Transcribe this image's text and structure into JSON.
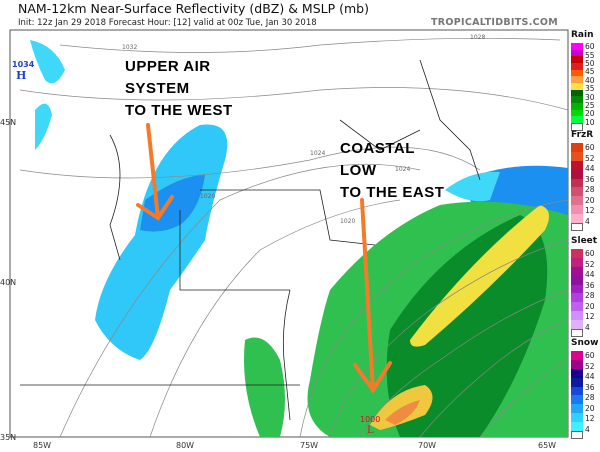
{
  "header": {
    "title": "NAM-12km Near-Surface Reflectivity (dBZ) & MSLP (mb)",
    "subtitle": "Init: 12z Jan 29 2018   Forecast Hour: [12]   valid at 00z Tue, Jan 30 2018",
    "brand": "TROPICALTIDBITS.COM"
  },
  "map": {
    "lat_labels": [
      "45N",
      "40N",
      "35N"
    ],
    "lon_labels": [
      "85W",
      "80W",
      "75W",
      "70W",
      "65W"
    ],
    "high": {
      "value": "1034",
      "symbol": "H",
      "color": "#1f3fd0"
    },
    "low": {
      "value": "1000",
      "symbol": "L",
      "color": "#d0102a"
    },
    "isobar_labels": [
      "1032",
      "1028",
      "1024",
      "1020",
      "1024",
      "1020"
    ],
    "annotations": [
      {
        "lines": [
          "UPPER AIR",
          "SYSTEM",
          "TO THE WEST"
        ]
      },
      {
        "lines": [
          "COASTAL",
          "LOW",
          "TO THE EAST"
        ]
      }
    ],
    "arrow_color": "#f47a2a"
  },
  "legend": [
    {
      "title": "Rain",
      "labels": [
        "60",
        "55",
        "50",
        "45",
        "40",
        "35",
        "30",
        "25",
        "20",
        "10"
      ],
      "colors": [
        "#ff00ff",
        "#c800c8",
        "#c80000",
        "#e02020",
        "#ff5a00",
        "#ffa040",
        "#ffe040",
        "#006400",
        "#008c00",
        "#00b400",
        "#00dc00",
        "#00ff40"
      ]
    },
    {
      "title": "FrzR",
      "labels": [
        "60",
        "52",
        "44",
        "36",
        "28",
        "20",
        "12",
        "4"
      ],
      "colors": [
        "#e04010",
        "#e85020",
        "#c01030",
        "#b01040",
        "#c03050",
        "#d05070",
        "#e07090",
        "#f090b0",
        "#ffb0c8"
      ]
    },
    {
      "title": "Sleet",
      "labels": [
        "60",
        "52",
        "44",
        "36",
        "28",
        "20",
        "12",
        "4"
      ],
      "colors": [
        "#d03060",
        "#c02080",
        "#a01090",
        "#9010a0",
        "#a020c0",
        "#b040e0",
        "#c060f0",
        "#d090ff",
        "#e0b0ff"
      ]
    },
    {
      "title": "Snow",
      "labels": [
        "60",
        "52",
        "44",
        "36",
        "28",
        "20",
        "12",
        "4"
      ],
      "colors": [
        "#e0008c",
        "#a0008c",
        "#180090",
        "#0c1ca0",
        "#1848d8",
        "#1c78f0",
        "#20a8f8",
        "#30d0ff",
        "#40f0ff"
      ]
    }
  ]
}
